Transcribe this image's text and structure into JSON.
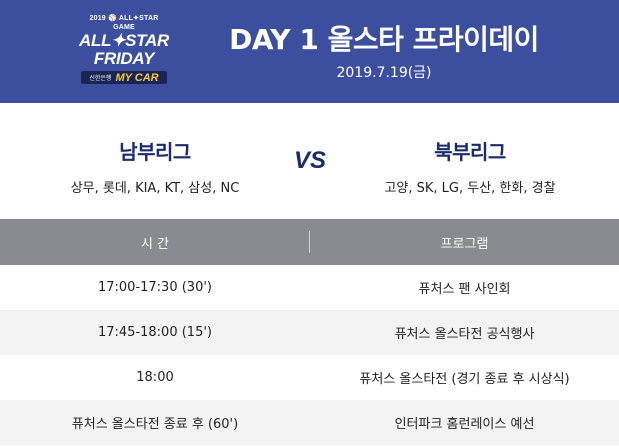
{
  "header": {
    "logo": {
      "top": "2019 ⚾ ALL✦STAR GAME",
      "line1": "ALL✦STAR",
      "line2": "FRIDAY",
      "bank": "신한은행",
      "car": "MY CAR"
    },
    "title": "DAY 1 올스타 프라이데이",
    "date": "2019.7.19(금)"
  },
  "teams": {
    "south": {
      "name": "남부리그",
      "clubs": "상무, 롯데, KIA, KT, 삼성, NC"
    },
    "vs": "VS",
    "north": {
      "name": "북부리그",
      "clubs": "고양, SK, LG, 두산, 한화, 경찰"
    }
  },
  "schedule": {
    "headers": {
      "time": "시 간",
      "program": "프로그램"
    },
    "rows": [
      {
        "time": "17:00-17:30 (30')",
        "program": "퓨처스 팬 사인회"
      },
      {
        "time": "17:45-18:00 (15')",
        "program": "퓨처스 올스타전 공식행사"
      },
      {
        "time": "18:00",
        "program": "퓨처스 올스타전 (경기 종료 후 시상식)"
      },
      {
        "time": "퓨처스 올스타전 종료 후 (60')",
        "program": "인터파크 홈런레이스 예선"
      }
    ]
  },
  "colors": {
    "header_bg": "#3c4e9e",
    "accent_navy": "#1b2a6b",
    "table_header_bg": "#8a8b90",
    "row_alt_bg": "#f3f3f3",
    "logo_car": "#f7c93b"
  }
}
